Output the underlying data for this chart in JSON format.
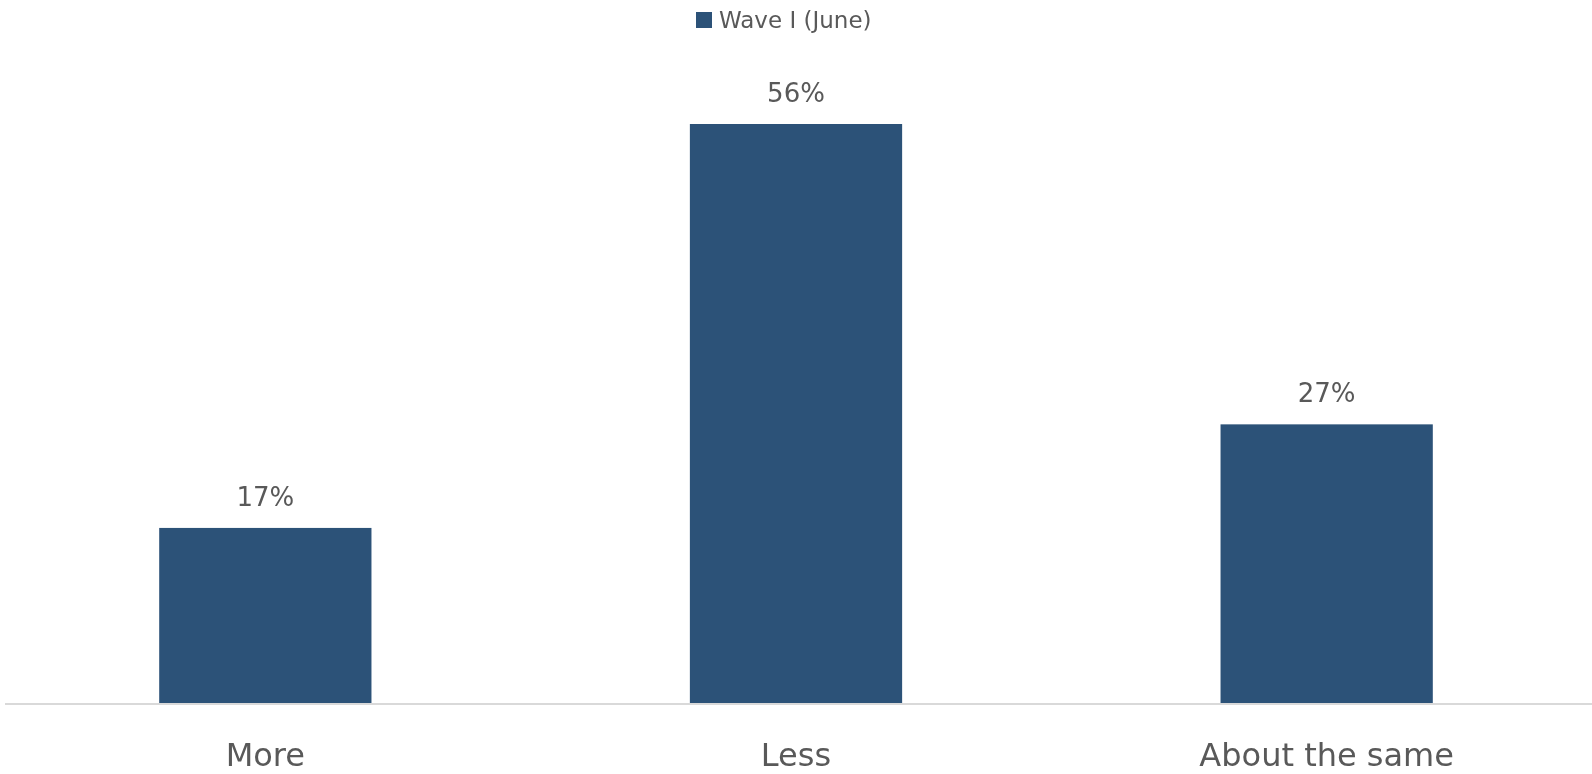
{
  "chart_data": {
    "type": "bar",
    "categories": [
      "More",
      "Less",
      "About the same"
    ],
    "series": [
      {
        "name": "Wave I (June)",
        "color": "#2c5278",
        "values": [
          17,
          56,
          27
        ],
        "value_labels": [
          "17%",
          "56%",
          "27%"
        ]
      }
    ],
    "legend": "top",
    "grid": false
  }
}
